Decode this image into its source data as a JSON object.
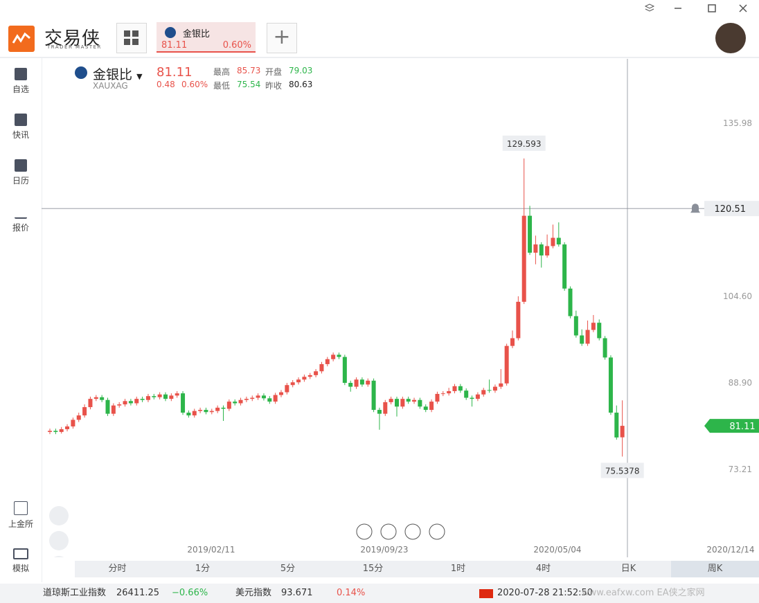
{
  "window": {
    "logo": "交易侠",
    "logo_sub": "TRADER MASTER",
    "tab": {
      "name": "金银比",
      "price": "81.11",
      "change": "0.60%"
    }
  },
  "sidebar": [
    "自选",
    "快讯",
    "日历",
    "报价",
    "上金所",
    "模拟"
  ],
  "quote": {
    "name": "金银比",
    "symbol": "XAUXAG",
    "last": "81.11",
    "change": "0.48",
    "change_pct": "0.60%",
    "high_label": "最高",
    "high": "85.73",
    "open_label": "开盘",
    "open": "79.03",
    "low_label": "最低",
    "low": "75.54",
    "prev_close_label": "昨收",
    "prev_close": "80.63"
  },
  "chart_data": {
    "type": "candlestick",
    "up_color": "#e8524a",
    "down_color": "#2db54a",
    "grid": false,
    "ylim": [
      57.27,
      147.65
    ],
    "yticks": [
      73.21,
      {
        "value": 88.9,
        "label": "88.90"
      },
      {
        "value": 104.6,
        "label": "104.60"
      },
      135.98
    ],
    "x_labels": [
      "2019/02/11",
      "2019/09/23",
      "2020/05/04",
      "2020/12/14"
    ],
    "crosshair_value": 120.51,
    "candles": [
      [
        80.0,
        80.6,
        79.6,
        80.2
      ],
      [
        80.2,
        80.6,
        79.6,
        80.0
      ],
      [
        80.0,
        80.9,
        79.7,
        80.5
      ],
      [
        80.5,
        81.4,
        80.1,
        81.0
      ],
      [
        81.0,
        82.6,
        80.6,
        82.2
      ],
      [
        82.2,
        83.5,
        81.8,
        83.0
      ],
      [
        83.0,
        85.0,
        82.6,
        84.5
      ],
      [
        84.5,
        86.4,
        84.1,
        86.0
      ],
      [
        86.0,
        86.7,
        85.6,
        86.3
      ],
      [
        86.3,
        86.7,
        85.4,
        85.8
      ],
      [
        85.8,
        86.2,
        82.9,
        83.3
      ],
      [
        83.3,
        85.2,
        82.9,
        84.8
      ],
      [
        84.8,
        85.4,
        84.4,
        85.0
      ],
      [
        85.0,
        86.0,
        84.6,
        85.6
      ],
      [
        85.6,
        86.0,
        84.8,
        85.2
      ],
      [
        85.2,
        86.4,
        84.8,
        86.0
      ],
      [
        86.0,
        86.4,
        85.4,
        85.8
      ],
      [
        85.8,
        86.9,
        85.4,
        86.5
      ],
      [
        86.5,
        86.9,
        85.9,
        86.3
      ],
      [
        86.3,
        87.2,
        85.9,
        86.8
      ],
      [
        86.8,
        87.2,
        85.6,
        86.0
      ],
      [
        86.0,
        87.0,
        85.6,
        86.6
      ],
      [
        86.6,
        87.4,
        86.2,
        87.0
      ],
      [
        87.0,
        87.4,
        83.1,
        83.5
      ],
      [
        83.5,
        83.9,
        82.6,
        83.0
      ],
      [
        83.0,
        84.2,
        82.6,
        83.8
      ],
      [
        83.8,
        84.4,
        83.4,
        84.0
      ],
      [
        84.0,
        84.4,
        83.2,
        83.6
      ],
      [
        83.6,
        84.2,
        83.2,
        83.8
      ],
      [
        83.8,
        84.8,
        83.4,
        84.4
      ],
      [
        84.4,
        84.8,
        82.0,
        84.2
      ],
      [
        84.2,
        85.9,
        83.8,
        85.5
      ],
      [
        85.5,
        85.9,
        84.8,
        85.2
      ],
      [
        85.2,
        86.2,
        84.8,
        85.8
      ],
      [
        85.8,
        86.4,
        85.4,
        86.0
      ],
      [
        86.0,
        86.6,
        85.6,
        86.2
      ],
      [
        86.2,
        87.0,
        85.8,
        86.6
      ],
      [
        86.6,
        87.0,
        85.7,
        86.1
      ],
      [
        86.1,
        86.5,
        85.1,
        85.5
      ],
      [
        85.5,
        87.1,
        85.1,
        86.7
      ],
      [
        86.7,
        87.6,
        86.3,
        87.2
      ],
      [
        87.2,
        88.9,
        86.8,
        88.5
      ],
      [
        88.5,
        89.4,
        88.1,
        89.0
      ],
      [
        89.0,
        89.9,
        88.6,
        89.5
      ],
      [
        89.5,
        90.4,
        89.1,
        90.0
      ],
      [
        90.0,
        90.7,
        89.6,
        90.3
      ],
      [
        90.3,
        91.4,
        89.9,
        91.0
      ],
      [
        91.0,
        92.7,
        90.6,
        92.3
      ],
      [
        92.3,
        93.6,
        91.9,
        93.2
      ],
      [
        93.2,
        94.4,
        92.8,
        94.0
      ],
      [
        94.0,
        94.4,
        93.2,
        93.6
      ],
      [
        93.6,
        94.0,
        88.5,
        88.9
      ],
      [
        88.9,
        89.3,
        87.3,
        88.2
      ],
      [
        88.2,
        89.9,
        87.8,
        89.5
      ],
      [
        89.5,
        89.9,
        88.2,
        88.6
      ],
      [
        88.6,
        89.7,
        88.2,
        89.3
      ],
      [
        89.3,
        89.7,
        83.6,
        84.0
      ],
      [
        84.0,
        84.4,
        80.4,
        83.3
      ],
      [
        83.3,
        85.8,
        82.9,
        85.4
      ],
      [
        85.4,
        86.4,
        85.0,
        86.0
      ],
      [
        86.0,
        86.4,
        82.8,
        84.6
      ],
      [
        84.6,
        86.4,
        84.2,
        86.0
      ],
      [
        86.0,
        86.4,
        85.1,
        85.5
      ],
      [
        85.5,
        86.2,
        85.1,
        85.8
      ],
      [
        85.8,
        86.2,
        84.2,
        84.6
      ],
      [
        84.6,
        85.0,
        83.6,
        84.0
      ],
      [
        84.0,
        85.9,
        83.6,
        85.5
      ],
      [
        85.5,
        87.3,
        85.1,
        86.9
      ],
      [
        86.9,
        87.4,
        86.5,
        87.0
      ],
      [
        87.0,
        88.0,
        86.6,
        87.4
      ],
      [
        87.4,
        88.7,
        87.0,
        88.3
      ],
      [
        88.3,
        88.7,
        87.1,
        87.5
      ],
      [
        87.5,
        87.9,
        85.8,
        86.2
      ],
      [
        86.2,
        86.6,
        84.6,
        86.0
      ],
      [
        86.0,
        87.2,
        85.6,
        86.8
      ],
      [
        86.8,
        88.0,
        86.4,
        87.6
      ],
      [
        87.6,
        89.5,
        87.1,
        87.5
      ],
      [
        87.5,
        88.6,
        87.1,
        88.2
      ],
      [
        88.2,
        91.4,
        87.8,
        88.8
      ],
      [
        88.8,
        96.0,
        88.4,
        95.6
      ],
      [
        95.6,
        98.4,
        95.2,
        97.0
      ],
      [
        97.0,
        104.6,
        96.6,
        103.6
      ],
      [
        103.6,
        129.593,
        103.2,
        119.2
      ],
      [
        119.2,
        121.0,
        112.1,
        112.5
      ],
      [
        112.5,
        115.6,
        110.4,
        114.0
      ],
      [
        114.0,
        114.4,
        109.8,
        112.0
      ],
      [
        112.0,
        115.8,
        111.6,
        113.7
      ],
      [
        113.7,
        117.6,
        113.3,
        115.2
      ],
      [
        115.2,
        118.0,
        113.6,
        114.0
      ],
      [
        114.0,
        114.4,
        105.6,
        106.0
      ],
      [
        106.0,
        106.4,
        100.6,
        101.0
      ],
      [
        101.0,
        102.0,
        97.1,
        97.5
      ],
      [
        97.5,
        98.6,
        95.6,
        96.0
      ],
      [
        96.0,
        100.2,
        95.6,
        98.5
      ],
      [
        98.5,
        101.2,
        98.1,
        99.8
      ],
      [
        99.8,
        100.4,
        96.6,
        97.0
      ],
      [
        97.0,
        97.4,
        93.1,
        93.5
      ],
      [
        93.5,
        93.9,
        83.1,
        83.5
      ],
      [
        83.5,
        84.8,
        78.6,
        79.0
      ],
      [
        79.03,
        85.73,
        75.5378,
        81.11
      ]
    ]
  },
  "timeframes": [
    "分时",
    "1分",
    "5分",
    "15分",
    "1时",
    "4时",
    "日K",
    "周K"
  ],
  "ticker": [
    {
      "name": "道琼斯工业指数",
      "value": "26411.25",
      "change": "−0.66%"
    },
    {
      "name": "美元指数",
      "value": "93.671",
      "change": "0.14%"
    }
  ],
  "clock": "2020-07-28 21:52:50",
  "watermark": "www.eafxw.com EA侠之家网"
}
